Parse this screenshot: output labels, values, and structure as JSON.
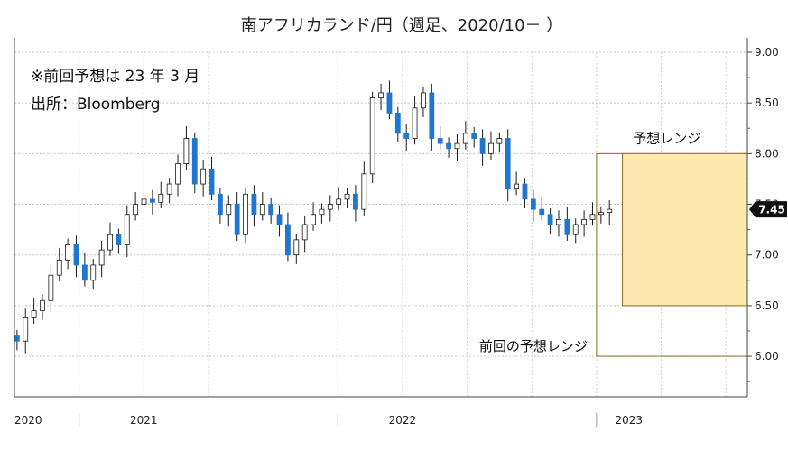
{
  "chart_data": {
    "type": "candlestick",
    "title": "南アフリカランド/円（週足、2020/10－ ）",
    "notes": [
      "※前回予想は 23 年 3 月",
      "出所：Bloomberg"
    ],
    "ylim": [
      5.6,
      9.0
    ],
    "yticks": [
      "6.00",
      "6.50",
      "7.00",
      "7.50",
      "8.00",
      "8.50",
      "9.00"
    ],
    "x_labels": [
      {
        "label": "2020",
        "pos": 2020.75
      },
      {
        "label": "2021",
        "pos": 2021.25
      },
      {
        "label": "2022",
        "pos": 2022.25
      },
      {
        "label": "2023",
        "pos": 2023.125
      }
    ],
    "x_separators": [
      2021.0,
      2022.0,
      2023.0
    ],
    "x_range": [
      2020.75,
      2023.583
    ],
    "up_color": "#ffffff",
    "down_color": "#1f77d0",
    "close_series": [
      6.15,
      6.38,
      6.45,
      6.55,
      6.8,
      6.95,
      7.1,
      6.9,
      6.75,
      6.9,
      7.05,
      7.2,
      7.1,
      7.4,
      7.5,
      7.55,
      7.52,
      7.6,
      7.7,
      7.9,
      8.15,
      7.7,
      7.85,
      7.6,
      7.4,
      7.5,
      7.2,
      7.6,
      7.4,
      7.5,
      7.4,
      7.3,
      7.0,
      7.15,
      7.3,
      7.4,
      7.45,
      7.5,
      7.55,
      7.6,
      7.45,
      7.8,
      8.55,
      8.6,
      8.4,
      8.2,
      8.15,
      8.45,
      8.6,
      8.15,
      8.1,
      8.05,
      8.1,
      8.2,
      8.15,
      8.0,
      8.1,
      8.15,
      7.65,
      7.7,
      7.55,
      7.45,
      7.4,
      7.3,
      7.35,
      7.2,
      7.3,
      7.35,
      7.4,
      7.42,
      7.45
    ],
    "current_value": "7.45",
    "forecast_range": {
      "label": "予想レンジ",
      "low": 6.5,
      "high": 8.0,
      "x_start": 2023.1,
      "x_end": 2023.583,
      "fill": "#fde8b0",
      "border": "#8a6d1a"
    },
    "previous_range": {
      "label": "前回の予想レンジ",
      "low": 6.0,
      "high": 8.0,
      "x_start": 2023.0,
      "x_end": 2023.583,
      "border": "#8a6d1a"
    }
  }
}
